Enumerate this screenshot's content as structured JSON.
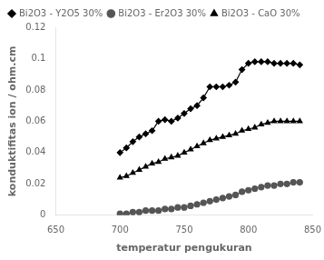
{
  "chart_data": {
    "type": "line",
    "xlabel": "temperatur pengukuran",
    "ylabel": "konduktifitas ion / ohm.cm",
    "x": [
      700,
      705,
      710,
      715,
      720,
      725,
      730,
      735,
      740,
      745,
      750,
      755,
      760,
      765,
      770,
      775,
      780,
      785,
      790,
      795,
      800,
      805,
      810,
      815,
      820,
      825,
      830,
      835,
      840
    ],
    "series": [
      {
        "name": "Bi2O3 - Y2O5 30%",
        "color": "#000000",
        "marker": "diamond",
        "values": [
          0.04,
          0.043,
          0.047,
          0.05,
          0.052,
          0.054,
          0.06,
          0.061,
          0.06,
          0.062,
          0.065,
          0.068,
          0.07,
          0.075,
          0.082,
          0.082,
          0.082,
          0.083,
          0.085,
          0.093,
          0.097,
          0.098,
          0.098,
          0.098,
          0.097,
          0.097,
          0.097,
          0.097,
          0.096
        ]
      },
      {
        "name": "Bi2O3 - Er2O3 30%",
        "color": "#555555",
        "marker": "circle",
        "values": [
          0.001,
          0.001,
          0.002,
          0.002,
          0.003,
          0.003,
          0.003,
          0.004,
          0.004,
          0.005,
          0.005,
          0.006,
          0.007,
          0.008,
          0.009,
          0.01,
          0.011,
          0.012,
          0.013,
          0.015,
          0.016,
          0.017,
          0.018,
          0.019,
          0.019,
          0.02,
          0.02,
          0.021,
          0.021
        ]
      },
      {
        "name": "Bi2O3 - CaO 30%",
        "color": "#000000",
        "marker": "triangle",
        "values": [
          0.024,
          0.025,
          0.027,
          0.029,
          0.031,
          0.033,
          0.034,
          0.036,
          0.037,
          0.038,
          0.04,
          0.042,
          0.044,
          0.046,
          0.048,
          0.049,
          0.05,
          0.051,
          0.052,
          0.054,
          0.055,
          0.056,
          0.058,
          0.059,
          0.06,
          0.06,
          0.06,
          0.06,
          0.06
        ]
      }
    ],
    "xlim": [
      650,
      850
    ],
    "xticks": [
      650,
      700,
      750,
      800,
      850
    ],
    "ylim": [
      0,
      0.12
    ],
    "yticks": [
      0,
      0.02,
      0.04,
      0.06,
      0.08,
      0.1,
      0.12
    ],
    "grid": false,
    "legend": "upper left"
  }
}
